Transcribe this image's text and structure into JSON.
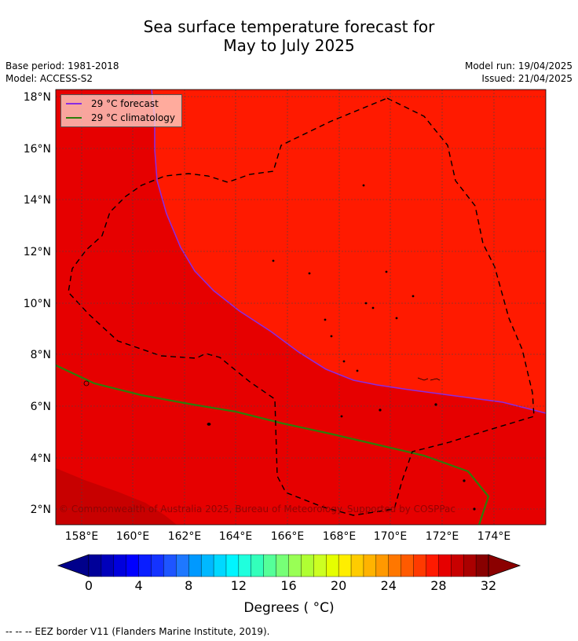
{
  "header": {
    "title_line1": "Sea surface temperature forecast for",
    "title_line2": "May to July 2025",
    "base_period": "Base period: 1981-2018",
    "model": "Model: ACCESS-S2",
    "model_run": "Model run: 19/04/2025",
    "issued": "Issued: 21/04/2025"
  },
  "map": {
    "lat_labels": [
      "18°N",
      "16°N",
      "14°N",
      "12°N",
      "10°N",
      "8°N",
      "6°N",
      "4°N",
      "2°N"
    ],
    "lon_labels": [
      "158°E",
      "160°E",
      "162°E",
      "164°E",
      "166°E",
      "168°E",
      "170°E",
      "172°E",
      "174°E"
    ],
    "copyright": "© Commonwealth of Australia 2025, Bureau of Meteorology. Supported by COSPPac",
    "colors": {
      "warm_29_30": "#e60000",
      "warm_30_31": "#ff1a00",
      "warm_28_29": "#c80000",
      "forecast_line": "#8a2be2",
      "climatology_line": "#2e7d0a",
      "eez_line": "#000000"
    }
  },
  "legend": {
    "forecast_label": "29 °C  forecast",
    "climatology_label": "29 °C  climatology"
  },
  "colorbar": {
    "tick_labels": [
      "0",
      "4",
      "8",
      "12",
      "16",
      "20",
      "24",
      "28",
      "32"
    ],
    "label": "Degrees ( °C)",
    "min": 0,
    "max": 32,
    "step": 1
  },
  "footnote": "--  --  -- EEZ border V11 (Flanders Marine Institute, 2019)."
}
